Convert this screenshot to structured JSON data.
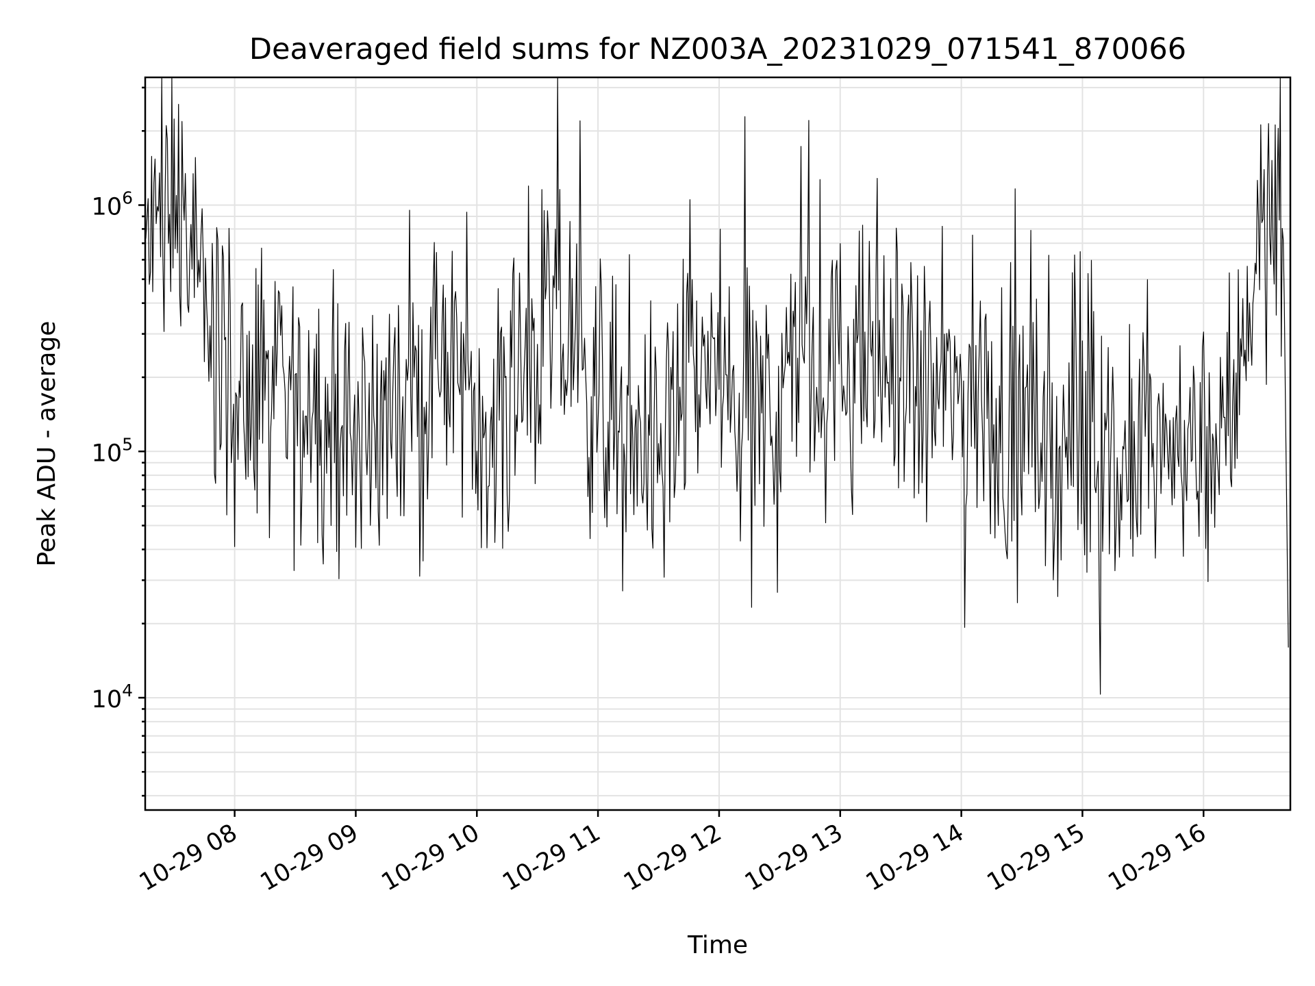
{
  "chart_data": {
    "type": "line",
    "title": "Deaveraged field sums for NZ003A_20231029_071541_870066",
    "xlabel": "Time",
    "ylabel": "Peak ADU - average",
    "yscale": "log",
    "ylim": [
      3500,
      3300000
    ],
    "xlim": [
      "2023-10-29 07:15:41",
      "2023-10-29 16:43:00"
    ],
    "grid": "on (major and minor)",
    "line_color": "#000000",
    "x_ticks": [
      "2023-10-29 08:00",
      "2023-10-29 09:00",
      "2023-10-29 10:00",
      "2023-10-29 11:00",
      "2023-10-29 12:00",
      "2023-10-29 13:00",
      "2023-10-29 14:00",
      "2023-10-29 15:00",
      "2023-10-29 16:00"
    ],
    "x_tick_labels": [
      "10-29 08",
      "10-29 09",
      "10-29 10",
      "10-29 11",
      "10-29 12",
      "10-29 13",
      "10-29 14",
      "10-29 15",
      "10-29 16"
    ],
    "y_ticks": [
      10000,
      100000,
      1000000
    ],
    "y_tick_labels": [
      {
        "base": "10",
        "exp": "4"
      },
      {
        "base": "10",
        "exp": "5"
      },
      {
        "base": "10",
        "exp": "6"
      }
    ],
    "series": [
      {
        "x": [
          "2023-10-29 07:16",
          "2023-10-29 07:20",
          "2023-10-29 07:25",
          "2023-10-29 07:30",
          "2023-10-29 07:35",
          "2023-10-29 07:40",
          "2023-10-29 07:45",
          "2023-10-29 07:50",
          "2023-10-29 07:55",
          "2023-10-29 08:00",
          "2023-10-29 08:10",
          "2023-10-29 08:20",
          "2023-10-29 08:30",
          "2023-10-29 08:40",
          "2023-10-29 08:50",
          "2023-10-29 09:00",
          "2023-10-29 09:10",
          "2023-10-29 09:20",
          "2023-10-29 09:30",
          "2023-10-29 09:40",
          "2023-10-29 09:50",
          "2023-10-29 10:00",
          "2023-10-29 10:10",
          "2023-10-29 10:20",
          "2023-10-29 10:30",
          "2023-10-29 10:40",
          "2023-10-29 10:50",
          "2023-10-29 11:00",
          "2023-10-29 11:10",
          "2023-10-29 11:20",
          "2023-10-29 11:30",
          "2023-10-29 11:40",
          "2023-10-29 11:50",
          "2023-10-29 12:00",
          "2023-10-29 12:10",
          "2023-10-29 12:20",
          "2023-10-29 12:30",
          "2023-10-29 12:40",
          "2023-10-29 12:50",
          "2023-10-29 13:00",
          "2023-10-29 13:10",
          "2023-10-29 13:20",
          "2023-10-29 13:30",
          "2023-10-29 13:40",
          "2023-10-29 13:50",
          "2023-10-29 14:00",
          "2023-10-29 14:10",
          "2023-10-29 14:20",
          "2023-10-29 14:30",
          "2023-10-29 14:40",
          "2023-10-29 14:50",
          "2023-10-29 15:00",
          "2023-10-29 15:10",
          "2023-10-29 15:20",
          "2023-10-29 15:30",
          "2023-10-29 15:40",
          "2023-10-29 15:50",
          "2023-10-29 16:00",
          "2023-10-29 16:10",
          "2023-10-29 16:15",
          "2023-10-29 16:20",
          "2023-10-29 16:25",
          "2023-10-29 16:30",
          "2023-10-29 16:35",
          "2023-10-29 16:38",
          "2023-10-29 16:40",
          "2023-10-29 16:42"
        ],
        "y": [
          650000,
          700000,
          650000,
          1500000,
          800000,
          450000,
          400000,
          300000,
          200000,
          150000,
          140000,
          160000,
          150000,
          150000,
          140000,
          120000,
          130000,
          150000,
          170000,
          200000,
          230000,
          170000,
          140000,
          160000,
          250000,
          350000,
          180000,
          170000,
          140000,
          110000,
          100000,
          180000,
          230000,
          200000,
          140000,
          130000,
          180000,
          250000,
          200000,
          220000,
          230000,
          230000,
          200000,
          160000,
          170000,
          180000,
          150000,
          130000,
          120000,
          110000,
          100000,
          100000,
          85000,
          80000,
          95000,
          100000,
          100000,
          105000,
          100000,
          110000,
          450000,
          500000,
          800000,
          900000,
          1200000,
          400000,
          16000
        ]
      }
    ]
  }
}
